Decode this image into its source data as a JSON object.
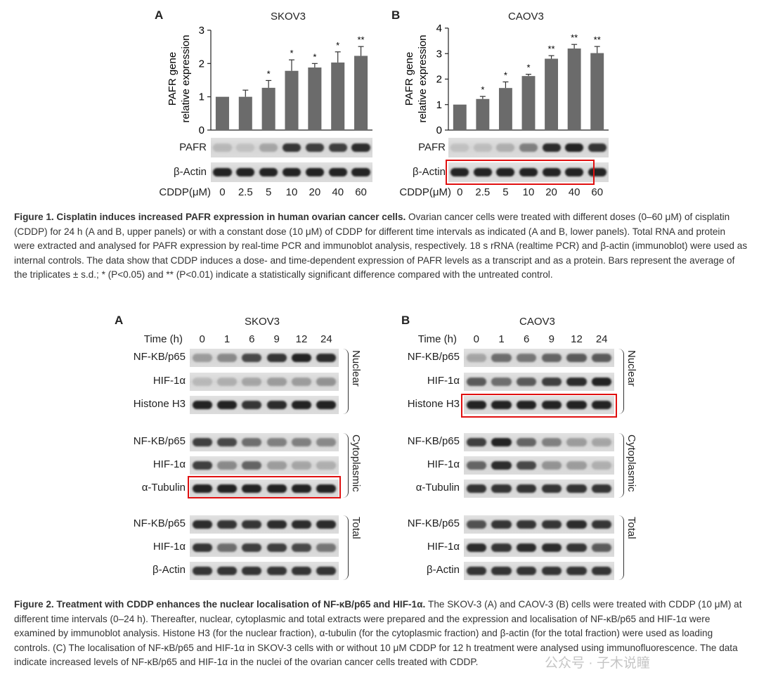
{
  "figure1": {
    "panelA": {
      "letter": "A",
      "title": "SKOV3",
      "ylabel1": "PAFR gene",
      "ylabel2": "relative expression",
      "blot_rows": [
        "PAFR",
        "β-Actin"
      ],
      "xlabel": "CDDP(μM)",
      "doses": [
        "0",
        "2.5",
        "5",
        "10",
        "20",
        "40",
        "60"
      ]
    },
    "panelB": {
      "letter": "B",
      "title": "CAOV3",
      "ylabel1": "PAFR gene",
      "ylabel2": "relative expression",
      "blot_rows": [
        "PAFR",
        "β-Actin"
      ],
      "xlabel": "CDDP(μM)",
      "doses": [
        "0",
        "2.5",
        "5",
        "10",
        "20",
        "40",
        "60"
      ]
    },
    "caption_label": "Figure 1. Cisplatin induces increased PAFR expression in human ovarian cancer cells.",
    "caption_body": " Ovarian cancer cells were treated with different doses (0–60 μM) of cisplatin (CDDP) for 24 h (A and B, upper panels) or with a constant dose (10 μM) of CDDP for different time intervals as indicated (A and B, lower panels). Total RNA and protein were extracted and analysed for PAFR expression by real-time PCR and immunoblot analysis, respectively. 18 s rRNA (realtime PCR) and β-actin (immunoblot) were used as internal controls. The data show that CDDP induces a dose- and time-dependent expression of PAFR levels as a transcript and as a protein. Bars represent the average of the triplicates ± s.d.; * (P<0.05) and ** (P<0.01) indicate a statistically significant difference compared with the untreated control."
  },
  "chart_data": [
    {
      "type": "bar",
      "title": "SKOV3",
      "ylabel": "PAFR gene relative expression",
      "xlabel": "CDDP(μM)",
      "categories": [
        "0",
        "2.5",
        "5",
        "10",
        "20",
        "40",
        "60"
      ],
      "values": [
        1.0,
        1.0,
        1.27,
        1.78,
        1.88,
        2.03,
        2.23
      ],
      "errors": [
        0,
        0.2,
        0.22,
        0.33,
        0.12,
        0.32,
        0.28
      ],
      "significance": [
        "",
        "",
        "*",
        "*",
        "*",
        "*",
        "**"
      ],
      "ylim": [
        0,
        3
      ],
      "yticks": [
        "0",
        "1",
        "2",
        "3"
      ]
    },
    {
      "type": "bar",
      "title": "CAOV3",
      "ylabel": "PAFR gene relative expression",
      "xlabel": "CDDP(μM)",
      "categories": [
        "0",
        "2.5",
        "5",
        "10",
        "20",
        "40",
        "60"
      ],
      "values": [
        1.0,
        1.22,
        1.65,
        2.12,
        2.8,
        3.2,
        3.02
      ],
      "errors": [
        0,
        0.1,
        0.24,
        0.07,
        0.12,
        0.16,
        0.26
      ],
      "significance": [
        "",
        "*",
        "*",
        "*",
        "**",
        "**",
        "**"
      ],
      "ylim": [
        0,
        4
      ],
      "yticks": [
        "0",
        "1",
        "2",
        "3",
        "4"
      ]
    }
  ],
  "figure2": {
    "panelA": {
      "letter": "A",
      "title": "SKOV3",
      "time_label": "Time (h)",
      "times": [
        "0",
        "1",
        "6",
        "9",
        "12",
        "24"
      ],
      "nuclear_rows": [
        "NF-KB/p65",
        "HIF-1α",
        "Histone H3"
      ],
      "cyto_rows": [
        "NF-KB/p65",
        "HIF-1α",
        "α-Tubulin"
      ],
      "total_rows": [
        "NF-KB/p65",
        "HIF-1α",
        "β-Actin"
      ],
      "fraction_labels": [
        "Nuclear",
        "Cytoplasmic",
        "Total"
      ]
    },
    "panelB": {
      "letter": "B",
      "title": "CAOV3",
      "time_label": "Time (h)",
      "times": [
        "0",
        "1",
        "6",
        "9",
        "12",
        "24"
      ],
      "nuclear_rows": [
        "NF-KB/p65",
        "HIF-1α",
        "Histone H3"
      ],
      "cyto_rows": [
        "NF-KB/p65",
        "HIF-1α",
        "α-Tubulin"
      ],
      "total_rows": [
        "NF-KB/p65",
        "HIF-1α",
        "β-Actin"
      ],
      "fraction_labels": [
        "Nuclear",
        "Cytoplasmic",
        "Total"
      ]
    },
    "caption_label": "Figure 2. Treatment with CDDP enhances the nuclear localisation of NF-κB/p65 and HIF-1α.",
    "caption_body": " The SKOV-3 (A) and CAOV-3 (B) cells were treated with CDDP (10 μM) at different time intervals (0–24 h). Thereafter, nuclear, cytoplasmic and total extracts were prepared and the expression and localisation of NF-κB/p65 and HIF-1α were examined by immunoblot analysis. Histone H3 (for the nuclear fraction), α-tubulin (for the cytoplasmic fraction) and β-actin (for the total fraction) were used as loading controls. (C) The localisation of NF-κB/p65 and HIF-1α in SKOV-3 cells with or without 10 μM CDDP for 12 h treatment were analysed using immunofluorescence. The data indicate increased levels of NF-κB/p65 and HIF-1α in the nuclei of the ovarian cancer cells treated with CDDP."
  },
  "watermark": "公众号 · 子木说瞳",
  "colors": {
    "bar": "#6b6b6b",
    "highlight": "#e01010"
  }
}
